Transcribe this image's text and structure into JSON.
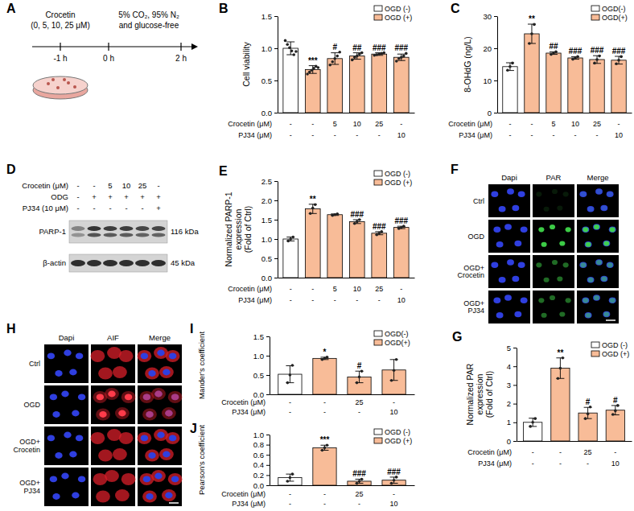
{
  "chart_data": [
    {
      "type": "bar",
      "title": "B",
      "y_label": "Cell viability",
      "ylim": [
        0,
        1.5
      ],
      "yticks": [
        {
          "value": 0,
          "label": "0.0"
        },
        0.5,
        {
          "value": 1,
          "label": "1.0"
        },
        1.5
      ],
      "legend": "top-right",
      "series": [
        {
          "name": "OGD (-)",
          "color": "#ffffff",
          "values": [
            1.0,
            null,
            null,
            null,
            null,
            null
          ],
          "errors": [
            0.1,
            null,
            null,
            null,
            null,
            null
          ],
          "points": [
            [
              1.12,
              1.06,
              1.01,
              0.96,
              0.9,
              0.95
            ],
            null,
            null,
            null,
            null,
            null
          ]
        },
        {
          "name": "OGD (+)",
          "color": "#f8bc98",
          "values": [
            null,
            0.67,
            0.84,
            0.88,
            0.91,
            0.86
          ],
          "errors": [
            null,
            0.06,
            0.09,
            0.05,
            0.02,
            0.05
          ],
          "points": [
            null,
            [
              0.6,
              0.63,
              0.66,
              0.69,
              0.72,
              0.7
            ],
            [
              0.74,
              0.79,
              0.84,
              0.88,
              0.94
            ],
            [
              0.82,
              0.86,
              0.88,
              0.91,
              0.93
            ],
            [
              0.89,
              0.9,
              0.91,
              0.92,
              0.93
            ],
            [
              0.8,
              0.84,
              0.86,
              0.88,
              0.92
            ]
          ]
        }
      ],
      "annotations": [
        null,
        "***",
        "#",
        "##",
        "###",
        "###"
      ],
      "condition_rows": [
        {
          "label": "Crocetin (μM)",
          "values": [
            "-",
            "-",
            "5",
            "10",
            "25",
            "-"
          ]
        },
        {
          "label": "PJ34 (μM)",
          "values": [
            "-",
            "-",
            "-",
            "-",
            "-",
            "10"
          ]
        }
      ]
    },
    {
      "type": "bar",
      "title": "C",
      "y_label": "8-OHdG (ng/L)",
      "ylim": [
        0,
        30
      ],
      "yticks": [
        0,
        10,
        20,
        30
      ],
      "legend": "top-right",
      "series": [
        {
          "name": "OGD(-)",
          "color": "#ffffff",
          "values": [
            14.3,
            null,
            null,
            null,
            null,
            null
          ],
          "errors": [
            1.2,
            null,
            null,
            null,
            null,
            null
          ],
          "points": [
            [
              13.2,
              14.3,
              15.4
            ],
            null,
            null,
            null,
            null,
            null
          ]
        },
        {
          "name": "OGD(+)",
          "color": "#f8bc98",
          "values": [
            null,
            24.5,
            18.5,
            17.0,
            16.5,
            16.3
          ],
          "errors": [
            null,
            3.0,
            0.4,
            0.4,
            1.2,
            1.2
          ],
          "points": [
            null,
            [
              21.5,
              24.5,
              27.4
            ],
            [
              18.1,
              18.5,
              18.9
            ],
            [
              16.6,
              17.0,
              17.4
            ],
            [
              15.4,
              16.5,
              17.6
            ],
            [
              15.2,
              16.3,
              17.4
            ]
          ]
        }
      ],
      "annotations": [
        null,
        "**",
        "##",
        "###",
        "###",
        "###"
      ],
      "condition_rows": [
        {
          "label": "Crocetin (μM)",
          "values": [
            "-",
            "-",
            "5",
            "10",
            "25",
            "-"
          ]
        },
        {
          "label": "PJ34 (μM)",
          "values": [
            "-",
            "-",
            "-",
            "-",
            "-",
            "10"
          ]
        }
      ]
    },
    {
      "type": "bar",
      "title": "E",
      "y_label": "Normalized PARP-1\nexpression\n(Fold of Ctrl)",
      "ylim": [
        0,
        2.5
      ],
      "yticks": [
        {
          "value": 0,
          "label": "0.0"
        },
        0.5,
        {
          "value": 1,
          "label": "1.0"
        },
        1.5,
        {
          "value": 2,
          "label": "2.0"
        },
        2.5
      ],
      "legend": "top-right",
      "series": [
        {
          "name": "OGD (-)",
          "color": "#ffffff",
          "values": [
            1.0,
            null,
            null,
            null,
            null,
            null
          ],
          "errors": [
            0.05,
            null,
            null,
            null,
            null,
            null
          ],
          "points": [
            [
              0.95,
              1.0,
              1.05
            ],
            null,
            null,
            null,
            null,
            null
          ]
        },
        {
          "name": "OGD (+)",
          "color": "#f8bc98",
          "values": [
            null,
            1.78,
            1.63,
            1.45,
            1.15,
            1.3
          ],
          "errors": [
            null,
            0.12,
            0.02,
            0.05,
            0.04,
            0.03
          ],
          "points": [
            null,
            [
              1.66,
              1.8,
              1.89
            ],
            [
              1.61,
              1.63,
              1.65
            ],
            [
              1.4,
              1.45,
              1.5
            ],
            [
              1.11,
              1.15,
              1.19
            ],
            [
              1.27,
              1.3,
              1.33
            ]
          ]
        }
      ],
      "annotations": [
        null,
        "**",
        null,
        "###",
        "###",
        "###"
      ],
      "condition_rows": [
        {
          "label": "Crocetin (μM)",
          "values": [
            "-",
            "-",
            "5",
            "10",
            "25",
            "-"
          ]
        },
        {
          "label": "PJ34 (μM)",
          "values": [
            "-",
            "-",
            "-",
            "-",
            "-",
            "10"
          ]
        }
      ]
    },
    {
      "type": "bar",
      "title": "G",
      "y_label": "Normalized PAR\nexpression\n(Fold of Ctrl)",
      "ylim": [
        0,
        5
      ],
      "yticks": [
        0,
        1,
        2,
        3,
        4,
        5
      ],
      "legend": "top-right",
      "series": [
        {
          "name": "OGD (-)",
          "color": "#ffffff",
          "values": [
            1.0,
            null,
            null,
            null
          ],
          "errors": [
            0.22,
            null,
            null,
            null
          ],
          "points": [
            [
              0.78,
              1.0,
              1.2
            ],
            null,
            null,
            null
          ]
        },
        {
          "name": "OGD (+)",
          "color": "#f8bc98",
          "values": [
            null,
            3.9,
            1.5,
            1.65
          ],
          "errors": [
            null,
            0.55,
            0.3,
            0.25
          ],
          "points": [
            null,
            [
              3.35,
              3.9,
              4.45
            ],
            [
              1.2,
              1.45,
              1.82
            ],
            [
              1.42,
              1.62,
              1.9
            ]
          ]
        }
      ],
      "annotations": [
        null,
        "**",
        "#",
        "#"
      ],
      "condition_rows": [
        {
          "label": "Crocetin (μM)",
          "values": [
            "-",
            "-",
            "25",
            "-"
          ]
        },
        {
          "label": "PJ34 (μM)",
          "values": [
            "-",
            "-",
            "-",
            "10"
          ]
        }
      ]
    },
    {
      "type": "bar",
      "title": "I",
      "y_label": "Mander's coefficient",
      "ylim": [
        0,
        1.5
      ],
      "yticks": [
        {
          "value": 0,
          "label": "0.0"
        },
        0.5,
        {
          "value": 1,
          "label": "1.0"
        },
        1.5
      ],
      "legend": "top-right",
      "series": [
        {
          "name": "OGD(-)",
          "color": "#ffffff",
          "values": [
            0.52,
            null,
            null,
            null
          ],
          "errors": [
            0.22,
            null,
            null,
            null
          ],
          "points": [
            [
              0.3,
              0.5,
              0.75
            ],
            null,
            null,
            null
          ]
        },
        {
          "name": "OGD(+)",
          "color": "#f8bc98",
          "values": [
            null,
            0.93,
            0.45,
            0.63
          ],
          "errors": [
            null,
            0.03,
            0.15,
            0.27
          ],
          "points": [
            null,
            [
              0.9,
              0.93,
              0.96
            ],
            [
              0.3,
              0.45,
              0.6
            ],
            [
              0.36,
              0.62,
              0.9
            ]
          ]
        }
      ],
      "annotations": [
        null,
        "*",
        "#",
        null
      ],
      "condition_rows": [
        {
          "label": "Crocetin (μM)",
          "values": [
            "-",
            "-",
            "25",
            "-"
          ]
        },
        {
          "label": "PJ34 (μM)",
          "values": [
            "-",
            "-",
            "-",
            "10"
          ]
        }
      ]
    },
    {
      "type": "bar",
      "title": "J",
      "y_label": "Pearson's coefficient",
      "ylim": [
        0,
        1
      ],
      "yticks": [
        {
          "value": 0,
          "label": "0.0"
        },
        0.2,
        0.4,
        0.6,
        0.8,
        {
          "value": 1,
          "label": "1.0"
        }
      ],
      "legend": "top-right",
      "series": [
        {
          "name": "OGD (-)",
          "color": "#ffffff",
          "values": [
            0.15,
            null,
            null,
            null
          ],
          "errors": [
            0.07,
            null,
            null,
            null
          ],
          "points": [
            [
              0.08,
              0.15,
              0.22
            ],
            null,
            null,
            null
          ]
        },
        {
          "name": "OGD (+)",
          "color": "#f8bc98",
          "values": [
            null,
            0.74,
            0.08,
            0.1
          ],
          "errors": [
            null,
            0.05,
            0.04,
            0.06
          ],
          "points": [
            null,
            [
              0.69,
              0.74,
              0.79
            ],
            [
              0.04,
              0.08,
              0.12
            ],
            [
              0.04,
              0.1,
              0.16
            ]
          ]
        }
      ],
      "annotations": [
        null,
        "***",
        "###",
        "###"
      ],
      "condition_rows": [
        {
          "label": "Crocetin (μM)",
          "values": [
            "-",
            "-",
            "25",
            "-"
          ]
        },
        {
          "label": "PJ34 (μM)",
          "values": [
            "-",
            "-",
            "-",
            "10"
          ]
        }
      ]
    }
  ],
  "schematic": {
    "label": "A",
    "compound": "Crocetin",
    "doses": "(0, 5, 10, 25 μM)",
    "condition": "5% CO₂, 95% N₂",
    "condition_2": "and glucose-free",
    "times": [
      "-1 h",
      "0 h",
      "2 h"
    ]
  },
  "blot": {
    "label": "D",
    "rows": [
      {
        "label": "Crocetin (μM)",
        "lanes": [
          "-",
          "-",
          "5",
          "10",
          "25",
          "-"
        ]
      },
      {
        "label": "ODG",
        "lanes": [
          "-",
          "+",
          "+",
          "+",
          "+",
          "+"
        ]
      },
      {
        "label": "PJ34 (10 μM)",
        "lanes": [
          "-",
          "-",
          "-",
          "-",
          "-",
          "+"
        ]
      }
    ],
    "bands": [
      {
        "name": "PARP-1",
        "size": "116 kDa"
      },
      {
        "name": "β-actin",
        "size": "45 kDa"
      }
    ]
  },
  "micrographs": [
    {
      "label": "F",
      "columns": [
        "Dapi",
        "PAR",
        "Merge"
      ],
      "rows": [
        "Ctrl",
        "OGD",
        "OGD+\nCrocetin",
        "OGD+\nPJ34"
      ]
    },
    {
      "label": "H",
      "columns": [
        "Dapi",
        "AIF",
        "Merge"
      ],
      "rows": [
        "Ctrl",
        "OGD",
        "OGD+\nCrocetin",
        "OGD+\nPJ34"
      ]
    }
  ]
}
